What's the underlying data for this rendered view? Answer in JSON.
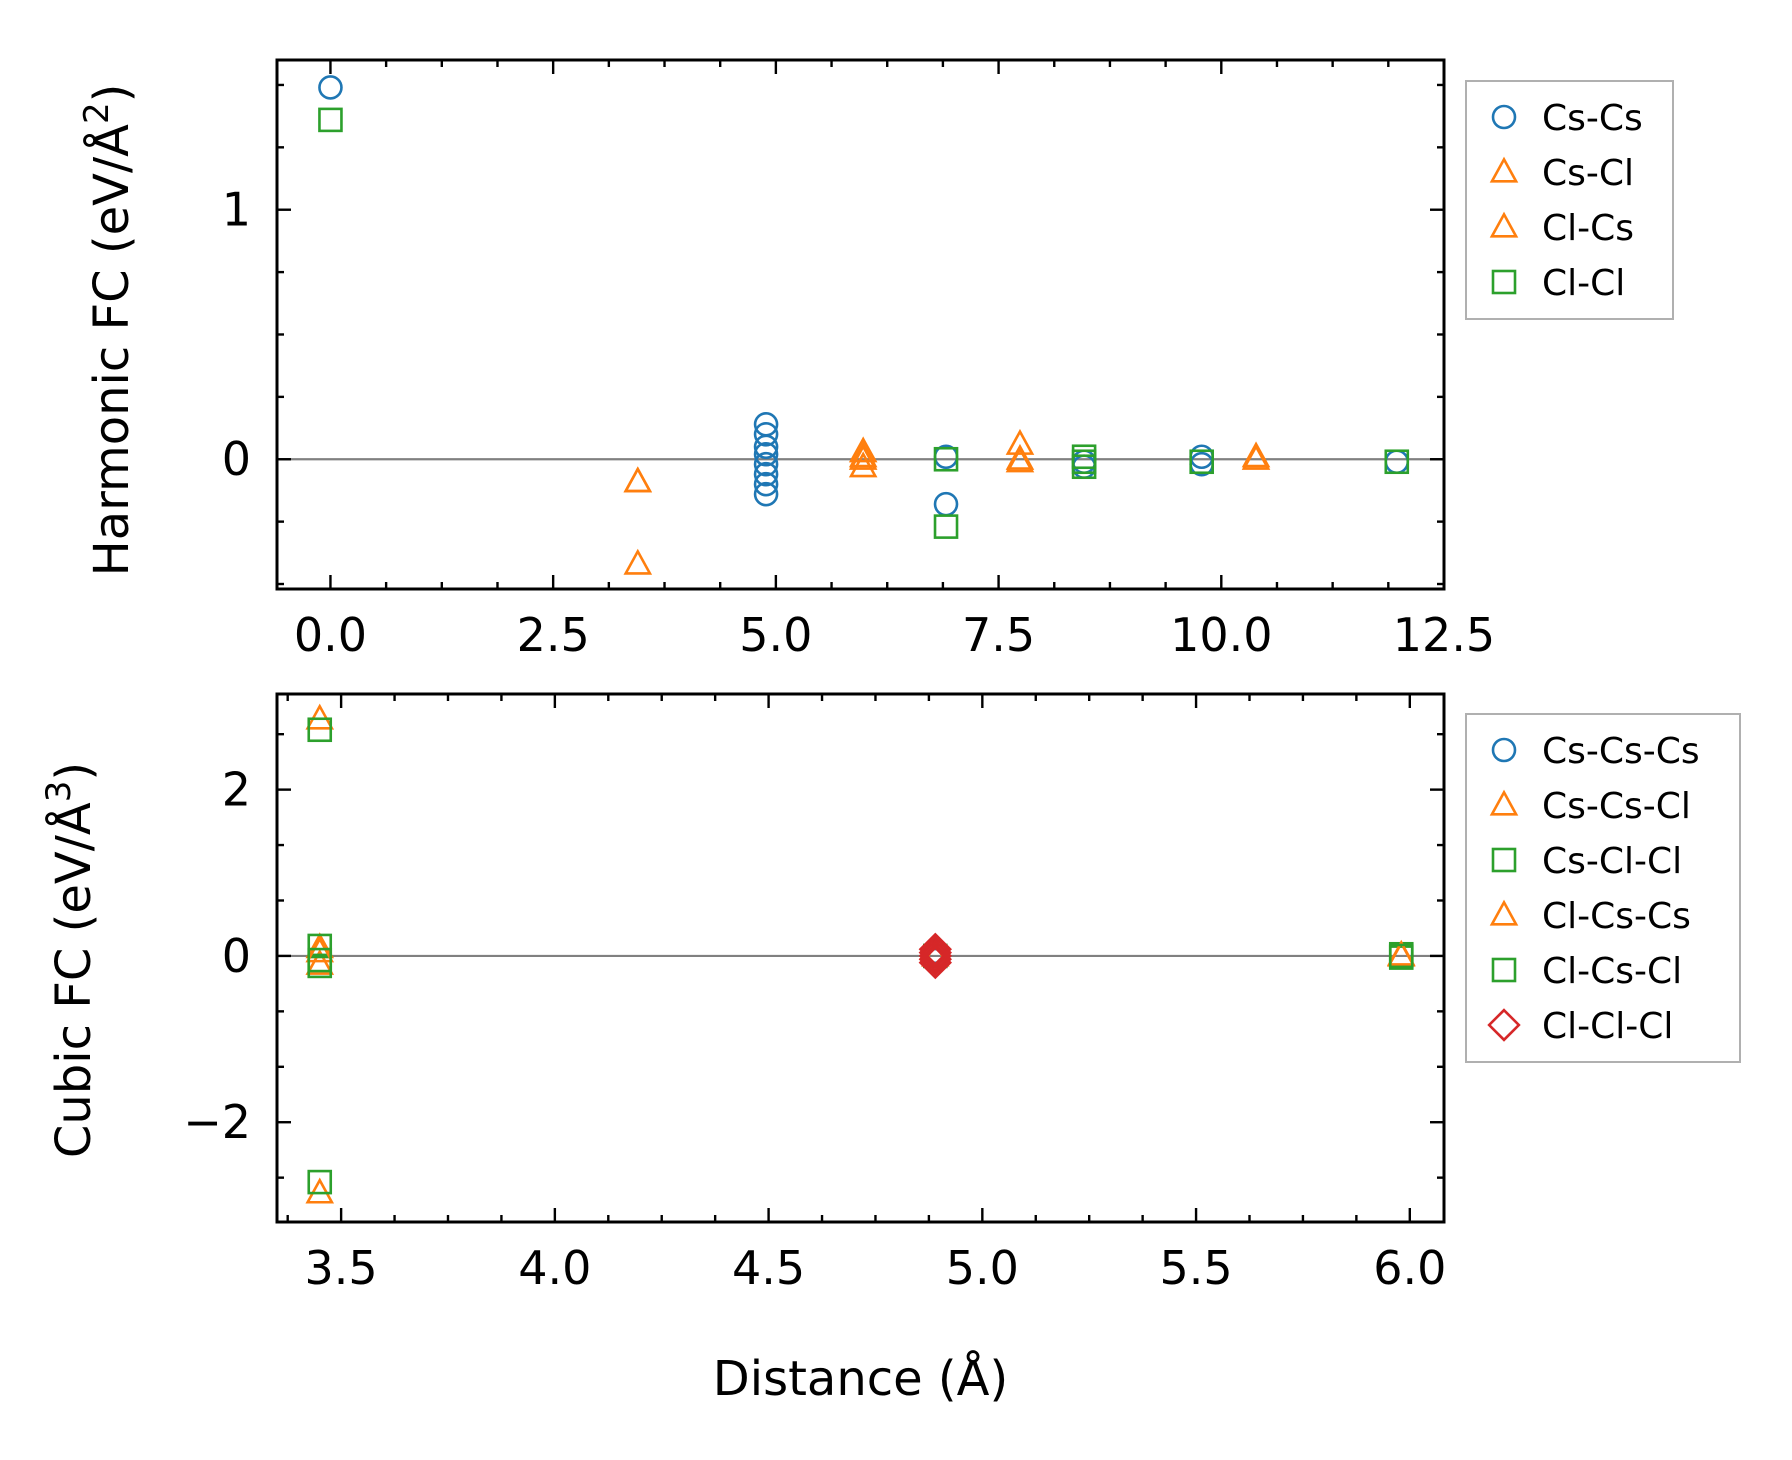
{
  "chart_data": [
    {
      "type": "scatter",
      "ylabel": "Harmonic FC (eV/Å",
      "ylabel_exp": "2",
      "ylabel_close": ")",
      "xlabel": "",
      "xlim": [
        -0.6,
        12.5
      ],
      "ylim": [
        -0.52,
        1.6
      ],
      "xticks": [
        0.0,
        2.5,
        5.0,
        7.5,
        10.0,
        12.5
      ],
      "xtick_labels": [
        "0.0",
        "2.5",
        "5.0",
        "7.5",
        "10.0",
        "12.5"
      ],
      "yticks": [
        0,
        1
      ],
      "ytick_labels": [
        "0",
        "1"
      ],
      "zero_line": true,
      "legend_position": "outside-right",
      "series": [
        {
          "name": "Cs-Cs",
          "marker": "circle",
          "color": "#1f77b4",
          "x": [
            0.0,
            4.89,
            4.89,
            4.89,
            4.89,
            4.89,
            4.89,
            4.89,
            4.89,
            6.91,
            6.91,
            8.46,
            8.46,
            9.78,
            9.78,
            11.97
          ],
          "y": [
            1.49,
            0.14,
            0.1,
            0.05,
            0.02,
            -0.02,
            -0.06,
            -0.1,
            -0.14,
            0.01,
            -0.18,
            -0.01,
            -0.03,
            0.01,
            -0.02,
            -0.01
          ]
        },
        {
          "name": "Cs-Cl",
          "marker": "triangle",
          "color": "#ff7f0e",
          "x": [
            3.45,
            3.45,
            5.98,
            5.98,
            5.98,
            7.74,
            7.74,
            10.39
          ],
          "y": [
            -0.09,
            -0.42,
            0.03,
            0.0,
            -0.03,
            0.06,
            -0.01,
            0.0
          ]
        },
        {
          "name": "Cl-Cs",
          "marker": "triangle",
          "color": "#ff7f0e",
          "x": [
            3.45,
            5.98,
            7.74,
            10.39
          ],
          "y": [
            -0.09,
            0.01,
            0.0,
            0.01
          ]
        },
        {
          "name": "Cl-Cl",
          "marker": "square",
          "color": "#2ca02c",
          "x": [
            0.0,
            6.91,
            6.91,
            8.46,
            8.46,
            8.46,
            9.78,
            11.97
          ],
          "y": [
            1.36,
            0.0,
            -0.27,
            0.01,
            -0.01,
            -0.03,
            -0.01,
            -0.01
          ]
        }
      ]
    },
    {
      "type": "scatter",
      "ylabel": "Cubic FC (eV/Å",
      "ylabel_exp": "3",
      "ylabel_close": ")",
      "xlabel": "Distance (Å)",
      "xlim": [
        3.35,
        6.08
      ],
      "ylim": [
        -3.2,
        3.15
      ],
      "xticks": [
        3.5,
        4.0,
        4.5,
        5.0,
        5.5,
        6.0
      ],
      "xtick_labels": [
        "3.5",
        "4.0",
        "4.5",
        "5.0",
        "5.5",
        "6.0"
      ],
      "yticks": [
        -2,
        0,
        2
      ],
      "ytick_labels": [
        "−2",
        "0",
        "2"
      ],
      "zero_line": true,
      "legend_position": "outside-right",
      "series": [
        {
          "name": "Cs-Cs-Cs",
          "marker": "circle",
          "color": "#1f77b4",
          "x": [
            4.89,
            4.89
          ],
          "y": [
            0.05,
            -0.05
          ]
        },
        {
          "name": "Cs-Cs-Cl",
          "marker": "triangle",
          "color": "#ff7f0e",
          "x": [
            3.45,
            3.45,
            3.45,
            3.45,
            5.98
          ],
          "y": [
            2.85,
            0.1,
            -0.1,
            -2.85,
            0.0
          ]
        },
        {
          "name": "Cs-Cl-Cl",
          "marker": "square",
          "color": "#2ca02c",
          "x": [
            3.45,
            3.45,
            3.45,
            3.45,
            5.98,
            5.98
          ],
          "y": [
            2.72,
            0.12,
            -0.12,
            -2.72,
            0.02,
            -0.02
          ]
        },
        {
          "name": "Cl-Cs-Cs",
          "marker": "triangle",
          "color": "#ff7f0e",
          "x": [
            3.45,
            4.89,
            5.98
          ],
          "y": [
            0.05,
            0.0,
            0.01
          ]
        },
        {
          "name": "Cl-Cs-Cl",
          "marker": "square",
          "color": "#2ca02c",
          "x": [
            3.45,
            4.89,
            5.98
          ],
          "y": [
            -0.05,
            0.0,
            0.0
          ]
        },
        {
          "name": "Cl-Cl-Cl",
          "marker": "diamond",
          "color": "#d62728",
          "x": [
            4.89,
            4.89,
            4.89,
            4.89,
            4.89
          ],
          "y": [
            0.08,
            0.04,
            0.0,
            -0.04,
            -0.08
          ]
        }
      ]
    }
  ]
}
